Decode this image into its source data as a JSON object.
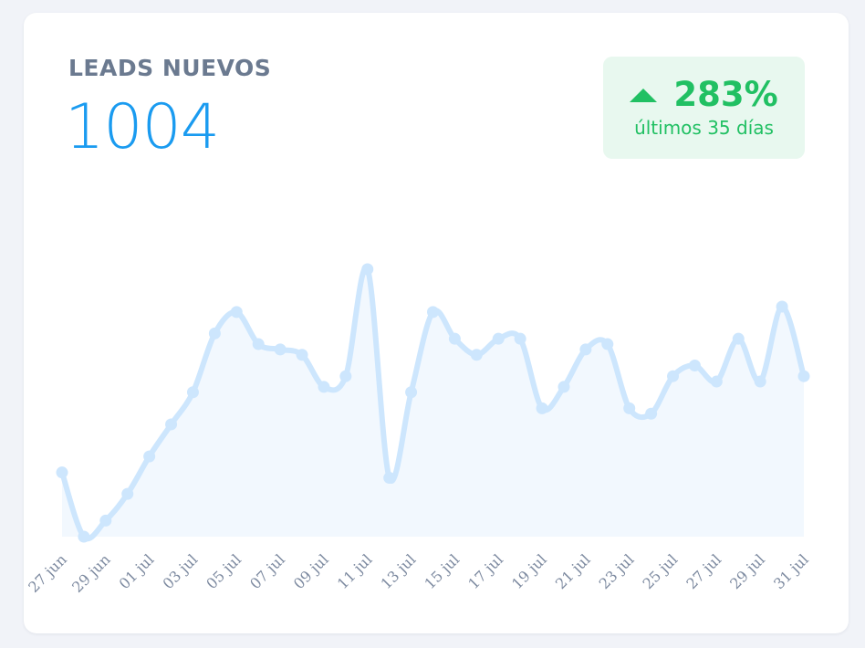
{
  "card": {
    "title": "LEADS NUEVOS",
    "total": "1004",
    "change": {
      "value": "283%",
      "direction": "up",
      "period": "últimos 35 días"
    }
  },
  "colors": {
    "accent": "#1a9bf0",
    "positive": "#21c063",
    "line": "#cde6fd",
    "area": "#f2f8fe",
    "label": "#6b7a90"
  },
  "icons": {
    "change_indicator": "triangle-up-icon"
  },
  "chart_data": {
    "type": "line",
    "smooth": true,
    "filled": true,
    "markers": true,
    "x": [
      "27 jun",
      "28 jun",
      "29 jun",
      "30 jun",
      "01 jul",
      "02 jul",
      "03 jul",
      "04 jul",
      "05 jul",
      "06 jul",
      "07 jul",
      "08 jul",
      "09 jul",
      "10 jul",
      "11 jul",
      "12 jul",
      "13 jul",
      "14 jul",
      "15 jul",
      "16 jul",
      "17 jul",
      "18 jul",
      "19 jul",
      "20 jul",
      "21 jul",
      "22 jul",
      "23 jul",
      "24 jul",
      "25 jul",
      "26 jul",
      "27 jul",
      "28 jul",
      "29 jul",
      "30 jul",
      "31 jul"
    ],
    "tick_labels": [
      "27 jun",
      "29 jun",
      "01 jul",
      "03 jul",
      "05 jul",
      "07 jul",
      "09 jul",
      "11 jul",
      "13 jul",
      "15 jul",
      "17 jul",
      "19 jul",
      "21 jul",
      "23 jul",
      "25 jul",
      "27 jul",
      "29 jul",
      "31 jul"
    ],
    "series": [
      {
        "values": [
          12,
          0,
          3,
          8,
          15,
          21,
          27,
          38,
          42,
          36,
          35,
          34,
          28,
          30,
          50,
          11,
          27,
          42,
          37,
          34,
          37,
          37,
          24,
          28,
          35,
          36,
          24,
          23,
          30,
          32,
          29,
          37,
          29,
          43,
          30
        ]
      }
    ],
    "ylim": [
      0,
      50
    ],
    "grid": false,
    "legend": "none",
    "title": "",
    "xlabel": "",
    "ylabel": ""
  }
}
